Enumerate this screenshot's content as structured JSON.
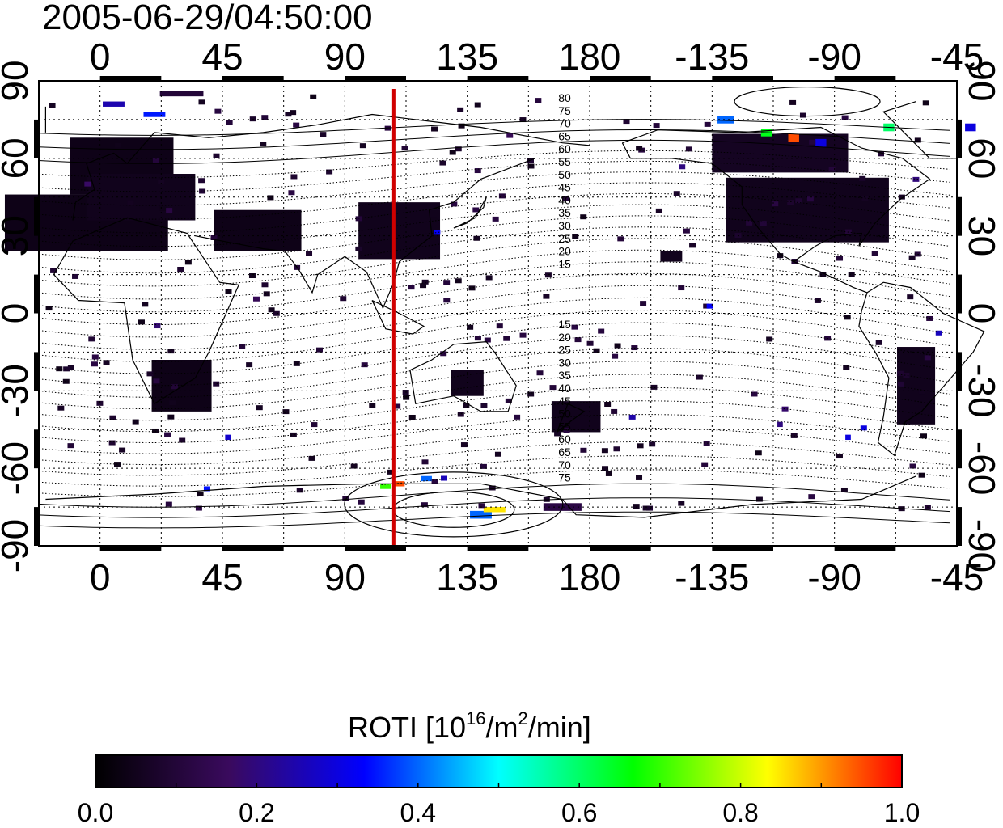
{
  "figure": {
    "timestamp": "2005-06-29/04:50:00",
    "lon_ticks": [
      "0",
      "45",
      "90",
      "135",
      "180",
      "-135",
      "-90",
      "-45"
    ],
    "lat_ticks": [
      "90",
      "60",
      "30",
      "0",
      "-30",
      "-60",
      "-90"
    ],
    "meridian_marker": {
      "lon": 108,
      "color": "#d00000"
    },
    "mlat_labels_north": [
      "80",
      "75",
      "70",
      "65",
      "60",
      "55",
      "50",
      "45",
      "40",
      "35",
      "30",
      "25",
      "20",
      "15"
    ],
    "mlat_labels_south": [
      "15",
      "20",
      "25",
      "30",
      "35",
      "40",
      "45",
      "50",
      "55",
      "60",
      "65",
      "70",
      "75"
    ]
  },
  "colorbar": {
    "title_main": "ROTI  [10",
    "title_exp1": "16",
    "title_mid": "/m",
    "title_exp2": "2",
    "title_end": "/min]",
    "ticks": [
      "0.0",
      "0.2",
      "0.4",
      "0.6",
      "0.8",
      "1.0"
    ],
    "stops": [
      "#000000",
      "#3a0a5e",
      "#0000ff",
      "#00ffff",
      "#00ff00",
      "#ffff00",
      "#ff0000"
    ]
  },
  "data_patches": [
    {
      "lon": -5,
      "lat": 35,
      "w": 60,
      "h": 22,
      "v": 0.04,
      "region": "europe"
    },
    {
      "lon": 8,
      "lat": 57,
      "w": 38,
      "h": 22,
      "v": 0.04
    },
    {
      "lon": 15,
      "lat": 45,
      "w": 40,
      "h": 18,
      "v": 0.05
    },
    {
      "lon": 30,
      "lat": -28,
      "w": 22,
      "h": 20,
      "v": 0.04
    },
    {
      "lon": 58,
      "lat": 32,
      "w": 32,
      "h": 16,
      "v": 0.04
    },
    {
      "lon": 110,
      "lat": 32,
      "w": 30,
      "h": 22,
      "v": 0.05
    },
    {
      "lon": 135,
      "lat": -27,
      "w": 12,
      "h": 10,
      "v": 0.05
    },
    {
      "lon": 175,
      "lat": -40,
      "w": 18,
      "h": 12,
      "v": 0.05
    },
    {
      "lon": -100,
      "lat": 40,
      "w": 60,
      "h": 25,
      "v": 0.05
    },
    {
      "lon": -110,
      "lat": 62,
      "w": 50,
      "h": 15,
      "v": 0.06
    },
    {
      "lon": -60,
      "lat": -28,
      "w": 14,
      "h": 30,
      "v": 0.05
    },
    {
      "lon": -150,
      "lat": 22,
      "w": 8,
      "h": 4,
      "v": 0.05
    },
    {
      "lon": 170,
      "lat": -75,
      "w": 14,
      "h": 3,
      "v": 0.12
    },
    {
      "lon": 140,
      "lat": -78,
      "w": 8,
      "h": 3,
      "v": 0.4
    },
    {
      "lon": 145,
      "lat": -76,
      "w": 8,
      "h": 2,
      "v": 0.85
    },
    {
      "lon": 110,
      "lat": -66,
      "w": 4,
      "h": 2,
      "v": 0.95
    },
    {
      "lon": 105,
      "lat": -67,
      "w": 4,
      "h": 2,
      "v": 0.7
    },
    {
      "lon": 120,
      "lat": -64,
      "w": 4,
      "h": 2,
      "v": 0.4
    },
    {
      "lon": -105,
      "lat": 68,
      "w": 4,
      "h": 3,
      "v": 0.95
    },
    {
      "lon": -115,
      "lat": 70,
      "w": 4,
      "h": 3,
      "v": 0.65
    },
    {
      "lon": -130,
      "lat": 75,
      "w": 6,
      "h": 3,
      "v": 0.4
    },
    {
      "lon": -95,
      "lat": 66,
      "w": 4,
      "h": 3,
      "v": 0.3
    },
    {
      "lon": -70,
      "lat": 72,
      "w": 4,
      "h": 3,
      "v": 0.6
    },
    {
      "lon": 5,
      "lat": 81,
      "w": 8,
      "h": 2,
      "v": 0.25
    },
    {
      "lon": 20,
      "lat": 77,
      "w": 8,
      "h": 2,
      "v": 0.35
    },
    {
      "lon": 30,
      "lat": 85,
      "w": 16,
      "h": 2,
      "v": 0.1
    },
    {
      "lon": -40,
      "lat": 72,
      "w": 4,
      "h": 3,
      "v": 0.3
    },
    {
      "lon": 47,
      "lat": -48,
      "w": 2,
      "h": 2,
      "v": 0.28
    },
    {
      "lon": -110,
      "lat": -43,
      "w": 2,
      "h": 2,
      "v": 0.2
    },
    {
      "lon": -85,
      "lat": -48,
      "w": 2,
      "h": 2,
      "v": 0.3
    }
  ]
}
